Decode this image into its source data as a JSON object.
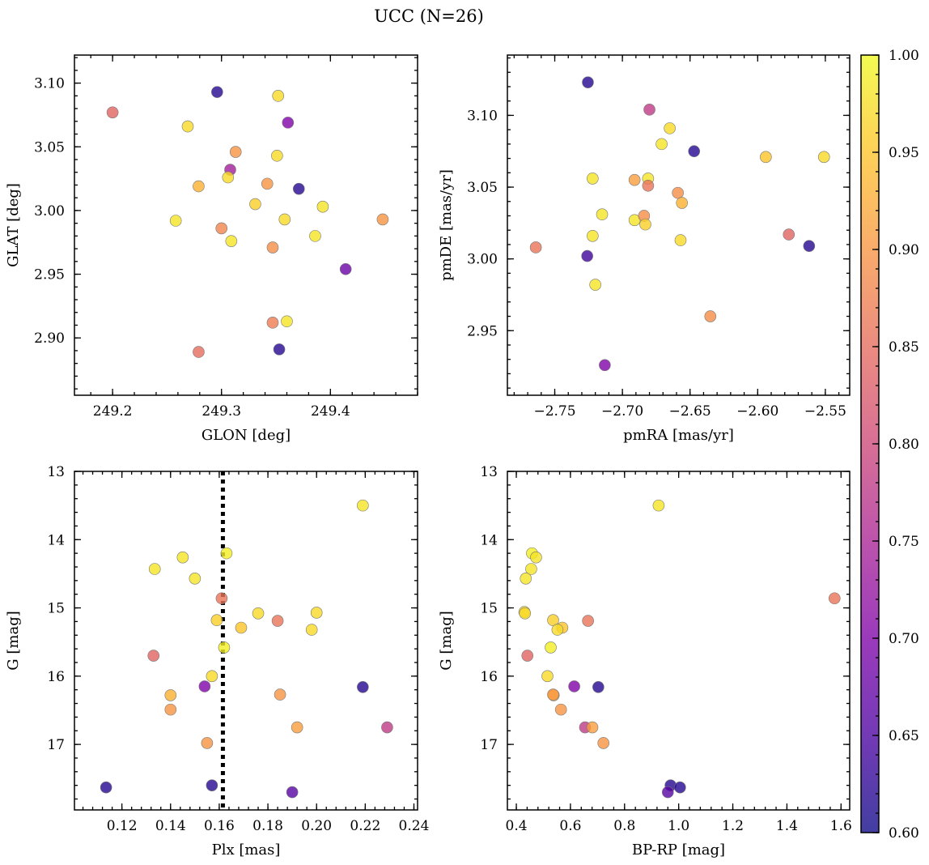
{
  "figure": {
    "title": "UCC (N=26)"
  },
  "colorbar": {
    "colormap": "plasma",
    "vmin": 0.6,
    "vmax": 1.0,
    "ticks": [
      "0.60",
      "0.65",
      "0.70",
      "0.75",
      "0.80",
      "0.85",
      "0.90",
      "0.95",
      "1.00"
    ]
  },
  "chart_data": [
    {
      "id": "glon-glat",
      "type": "scatter",
      "title": "",
      "xlabel": "GLON [deg]",
      "ylabel": "GLAT [deg]",
      "xlim": [
        249.165,
        249.48
      ],
      "ylim": [
        2.855,
        3.122
      ],
      "xticks": [
        {
          "value": 249.2,
          "label": "249.2"
        },
        {
          "value": 249.3,
          "label": "249.3"
        },
        {
          "value": 249.4,
          "label": "249.4"
        }
      ],
      "yticks": [
        {
          "value": 2.9,
          "label": "2.90"
        },
        {
          "value": 2.95,
          "label": "2.95"
        },
        {
          "value": 3.0,
          "label": "3.00"
        },
        {
          "value": 3.05,
          "label": "3.05"
        },
        {
          "value": 3.1,
          "label": "3.10"
        }
      ],
      "points": [
        {
          "x": 249.2,
          "y": 3.077,
          "c": 0.84
        },
        {
          "x": 249.269,
          "y": 3.066,
          "c": 0.97
        },
        {
          "x": 249.296,
          "y": 3.093,
          "c": 0.62
        },
        {
          "x": 249.352,
          "y": 3.09,
          "c": 0.97
        },
        {
          "x": 249.361,
          "y": 3.069,
          "c": 0.7
        },
        {
          "x": 249.313,
          "y": 3.046,
          "c": 0.9
        },
        {
          "x": 249.308,
          "y": 3.032,
          "c": 0.74
        },
        {
          "x": 249.306,
          "y": 3.026,
          "c": 0.97
        },
        {
          "x": 249.351,
          "y": 3.043,
          "c": 0.97
        },
        {
          "x": 249.279,
          "y": 3.019,
          "c": 0.93
        },
        {
          "x": 249.342,
          "y": 3.021,
          "c": 0.9
        },
        {
          "x": 249.371,
          "y": 3.017,
          "c": 0.62
        },
        {
          "x": 249.331,
          "y": 3.005,
          "c": 0.96
        },
        {
          "x": 249.393,
          "y": 3.003,
          "c": 0.98
        },
        {
          "x": 249.258,
          "y": 2.992,
          "c": 0.98
        },
        {
          "x": 249.358,
          "y": 2.993,
          "c": 0.97
        },
        {
          "x": 249.448,
          "y": 2.993,
          "c": 0.9
        },
        {
          "x": 249.3,
          "y": 2.986,
          "c": 0.88
        },
        {
          "x": 249.309,
          "y": 2.976,
          "c": 0.98
        },
        {
          "x": 249.386,
          "y": 2.98,
          "c": 0.98
        },
        {
          "x": 249.347,
          "y": 2.971,
          "c": 0.89
        },
        {
          "x": 249.414,
          "y": 2.954,
          "c": 0.68
        },
        {
          "x": 249.347,
          "y": 2.912,
          "c": 0.87
        },
        {
          "x": 249.36,
          "y": 2.913,
          "c": 0.98
        },
        {
          "x": 249.353,
          "y": 2.891,
          "c": 0.62
        },
        {
          "x": 249.279,
          "y": 2.889,
          "c": 0.85
        }
      ]
    },
    {
      "id": "pmra-pmde",
      "type": "scatter",
      "title": "",
      "xlabel": "pmRA [mas/yr]",
      "ylabel": "pmDE [mas/yr]",
      "xlim": [
        -2.785,
        -2.532
      ],
      "ylim": [
        2.905,
        3.142
      ],
      "xticks": [
        {
          "value": -2.75,
          "label": "−2.75"
        },
        {
          "value": -2.7,
          "label": "−2.70"
        },
        {
          "value": -2.65,
          "label": "−2.65"
        },
        {
          "value": -2.6,
          "label": "−2.60"
        },
        {
          "value": -2.55,
          "label": "−2.55"
        }
      ],
      "yticks": [
        {
          "value": 2.95,
          "label": "2.95"
        },
        {
          "value": 3.0,
          "label": "3.00"
        },
        {
          "value": 3.05,
          "label": "3.05"
        },
        {
          "value": 3.1,
          "label": "3.10"
        }
      ],
      "points": [
        {
          "x": -2.7255,
          "y": 3.123,
          "c": 0.62
        },
        {
          "x": -2.68,
          "y": 3.104,
          "c": 0.78
        },
        {
          "x": -2.665,
          "y": 3.091,
          "c": 0.97
        },
        {
          "x": -2.671,
          "y": 3.08,
          "c": 0.98
        },
        {
          "x": -2.647,
          "y": 3.075,
          "c": 0.62
        },
        {
          "x": -2.594,
          "y": 3.071,
          "c": 0.95
        },
        {
          "x": -2.551,
          "y": 3.071,
          "c": 0.97
        },
        {
          "x": -2.722,
          "y": 3.056,
          "c": 0.98
        },
        {
          "x": -2.691,
          "y": 3.055,
          "c": 0.91
        },
        {
          "x": -2.681,
          "y": 3.056,
          "c": 0.98
        },
        {
          "x": -2.681,
          "y": 3.051,
          "c": 0.86
        },
        {
          "x": -2.659,
          "y": 3.046,
          "c": 0.89
        },
        {
          "x": -2.656,
          "y": 3.039,
          "c": 0.93
        },
        {
          "x": -2.715,
          "y": 3.031,
          "c": 0.98
        },
        {
          "x": -2.691,
          "y": 3.027,
          "c": 0.98
        },
        {
          "x": -2.684,
          "y": 3.03,
          "c": 0.89
        },
        {
          "x": -2.683,
          "y": 3.024,
          "c": 0.96
        },
        {
          "x": -2.722,
          "y": 3.016,
          "c": 0.98
        },
        {
          "x": -2.657,
          "y": 3.013,
          "c": 0.97
        },
        {
          "x": -2.577,
          "y": 3.017,
          "c": 0.84
        },
        {
          "x": -2.764,
          "y": 3.008,
          "c": 0.86
        },
        {
          "x": -2.562,
          "y": 3.009,
          "c": 0.62
        },
        {
          "x": -2.726,
          "y": 3.002,
          "c": 0.64
        },
        {
          "x": -2.72,
          "y": 2.982,
          "c": 0.98
        },
        {
          "x": -2.635,
          "y": 2.96,
          "c": 0.89
        },
        {
          "x": -2.713,
          "y": 2.926,
          "c": 0.7
        }
      ]
    },
    {
      "id": "plx-g",
      "type": "scatter",
      "title": "",
      "xlabel": "Plx [mas]",
      "ylabel": "G [mag]",
      "xlim": [
        0.1005,
        0.2415
      ],
      "ylim": [
        17.96,
        13.0
      ],
      "y_inverted": true,
      "vline": {
        "x": 0.1615,
        "style": "dotted"
      },
      "xticks": [
        {
          "value": 0.12,
          "label": "0.12"
        },
        {
          "value": 0.14,
          "label": "0.14"
        },
        {
          "value": 0.16,
          "label": "0.16"
        },
        {
          "value": 0.18,
          "label": "0.18"
        },
        {
          "value": 0.2,
          "label": "0.20"
        },
        {
          "value": 0.22,
          "label": "0.22"
        },
        {
          "value": 0.24,
          "label": "0.24"
        }
      ],
      "yticks": [
        {
          "value": 13,
          "label": "13"
        },
        {
          "value": 14,
          "label": "14"
        },
        {
          "value": 15,
          "label": "15"
        },
        {
          "value": 16,
          "label": "16"
        },
        {
          "value": 17,
          "label": "17"
        }
      ],
      "points": [
        {
          "x": 0.219,
          "y": 13.5,
          "c": 0.98
        },
        {
          "x": 0.163,
          "y": 14.2,
          "c": 0.99
        },
        {
          "x": 0.145,
          "y": 14.26,
          "c": 0.98
        },
        {
          "x": 0.1335,
          "y": 14.43,
          "c": 0.98
        },
        {
          "x": 0.15,
          "y": 14.57,
          "c": 0.98
        },
        {
          "x": 0.161,
          "y": 14.86,
          "c": 0.86
        },
        {
          "x": 0.176,
          "y": 15.08,
          "c": 0.97
        },
        {
          "x": 0.2,
          "y": 15.07,
          "c": 0.97
        },
        {
          "x": 0.159,
          "y": 15.18,
          "c": 0.96
        },
        {
          "x": 0.184,
          "y": 15.19,
          "c": 0.86
        },
        {
          "x": 0.169,
          "y": 15.29,
          "c": 0.95
        },
        {
          "x": 0.198,
          "y": 15.32,
          "c": 0.97
        },
        {
          "x": 0.162,
          "y": 15.58,
          "c": 0.99
        },
        {
          "x": 0.133,
          "y": 15.7,
          "c": 0.84
        },
        {
          "x": 0.157,
          "y": 16.0,
          "c": 0.97
        },
        {
          "x": 0.154,
          "y": 16.15,
          "c": 0.7
        },
        {
          "x": 0.219,
          "y": 16.16,
          "c": 0.62
        },
        {
          "x": 0.14,
          "y": 16.28,
          "c": 0.93
        },
        {
          "x": 0.185,
          "y": 16.27,
          "c": 0.9
        },
        {
          "x": 0.14,
          "y": 16.49,
          "c": 0.9
        },
        {
          "x": 0.229,
          "y": 16.75,
          "c": 0.78
        },
        {
          "x": 0.192,
          "y": 16.75,
          "c": 0.91
        },
        {
          "x": 0.155,
          "y": 16.98,
          "c": 0.9
        },
        {
          "x": 0.1135,
          "y": 17.63,
          "c": 0.62
        },
        {
          "x": 0.157,
          "y": 17.6,
          "c": 0.62
        },
        {
          "x": 0.19,
          "y": 17.7,
          "c": 0.66
        }
      ]
    },
    {
      "id": "bprp-g",
      "type": "scatter",
      "title": "",
      "xlabel": "BP-RP [mag]",
      "ylabel": "G [mag]",
      "xlim": [
        0.367,
        1.632
      ],
      "ylim": [
        17.96,
        13.0
      ],
      "y_inverted": true,
      "xticks": [
        {
          "value": 0.4,
          "label": "0.4"
        },
        {
          "value": 0.6,
          "label": "0.6"
        },
        {
          "value": 0.8,
          "label": "0.8"
        },
        {
          "value": 1.0,
          "label": "1.0"
        },
        {
          "value": 1.2,
          "label": "1.2"
        },
        {
          "value": 1.4,
          "label": "1.4"
        },
        {
          "value": 1.6,
          "label": "1.6"
        }
      ],
      "yticks": [
        {
          "value": 13,
          "label": "13"
        },
        {
          "value": 14,
          "label": "14"
        },
        {
          "value": 15,
          "label": "15"
        },
        {
          "value": 16,
          "label": "16"
        },
        {
          "value": 17,
          "label": "17"
        }
      ],
      "points": [
        {
          "x": 0.926,
          "y": 13.5,
          "c": 0.98
        },
        {
          "x": 0.458,
          "y": 14.2,
          "c": 0.99
        },
        {
          "x": 0.473,
          "y": 14.26,
          "c": 0.98
        },
        {
          "x": 0.455,
          "y": 14.43,
          "c": 0.98
        },
        {
          "x": 0.435,
          "y": 14.57,
          "c": 0.98
        },
        {
          "x": 1.576,
          "y": 14.86,
          "c": 0.86
        },
        {
          "x": 0.43,
          "y": 15.06,
          "c": 0.97
        },
        {
          "x": 0.432,
          "y": 15.08,
          "c": 0.97
        },
        {
          "x": 0.536,
          "y": 15.18,
          "c": 0.96
        },
        {
          "x": 0.665,
          "y": 15.19,
          "c": 0.86
        },
        {
          "x": 0.57,
          "y": 15.29,
          "c": 0.95
        },
        {
          "x": 0.552,
          "y": 15.32,
          "c": 0.97
        },
        {
          "x": 0.527,
          "y": 15.58,
          "c": 0.99
        },
        {
          "x": 0.441,
          "y": 15.7,
          "c": 0.84
        },
        {
          "x": 0.515,
          "y": 16.0,
          "c": 0.97
        },
        {
          "x": 0.614,
          "y": 16.15,
          "c": 0.7
        },
        {
          "x": 0.703,
          "y": 16.16,
          "c": 0.62
        },
        {
          "x": 0.538,
          "y": 16.28,
          "c": 0.93
        },
        {
          "x": 0.536,
          "y": 16.27,
          "c": 0.9
        },
        {
          "x": 0.565,
          "y": 16.49,
          "c": 0.9
        },
        {
          "x": 0.654,
          "y": 16.75,
          "c": 0.78
        },
        {
          "x": 0.681,
          "y": 16.75,
          "c": 0.91
        },
        {
          "x": 0.722,
          "y": 16.98,
          "c": 0.9
        },
        {
          "x": 0.97,
          "y": 17.6,
          "c": 0.62
        },
        {
          "x": 1.005,
          "y": 17.63,
          "c": 0.62
        },
        {
          "x": 0.96,
          "y": 17.7,
          "c": 0.66
        }
      ]
    }
  ]
}
